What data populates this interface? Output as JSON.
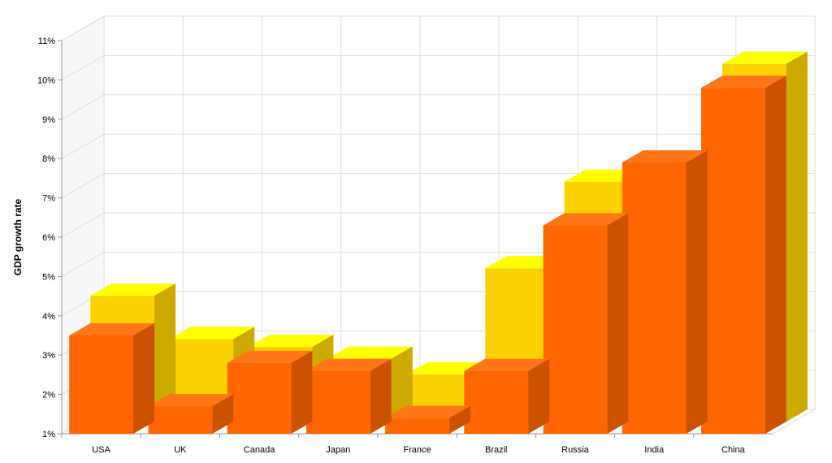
{
  "chart_data": {
    "type": "bar",
    "title": "",
    "xlabel": "",
    "ylabel": "GDP growth rate",
    "ylim": [
      1,
      11
    ],
    "yticks": [
      "1%",
      "2%",
      "3%",
      "4%",
      "5%",
      "6%",
      "7%",
      "8%",
      "9%",
      "10%",
      "11%"
    ],
    "categories": [
      "USA",
      "UK",
      "Canada",
      "Japan",
      "France",
      "Brazil",
      "Russia",
      "India",
      "China"
    ],
    "series": [
      {
        "values": [
          3.5,
          1.7,
          2.8,
          2.6,
          1.4,
          2.6,
          6.3,
          7.9,
          9.8
        ],
        "color": "#FF6600"
      },
      {
        "values": [
          4.2,
          3.1,
          2.9,
          2.6,
          2.2,
          4.9,
          7.1,
          6.8,
          10.1
        ],
        "color": "#FCD202"
      }
    ],
    "grid": true,
    "depth_3d": true,
    "colors": {
      "front_series_face": "#FF6600",
      "front_series_top": "#FF7518",
      "front_series_side": "#CC5200",
      "back_series_face": "#FCD202",
      "back_series_top": "#FFFF00",
      "back_series_side": "#CCAA00",
      "grid": "#DDDDDD",
      "wall": "#F8F8F8"
    }
  }
}
